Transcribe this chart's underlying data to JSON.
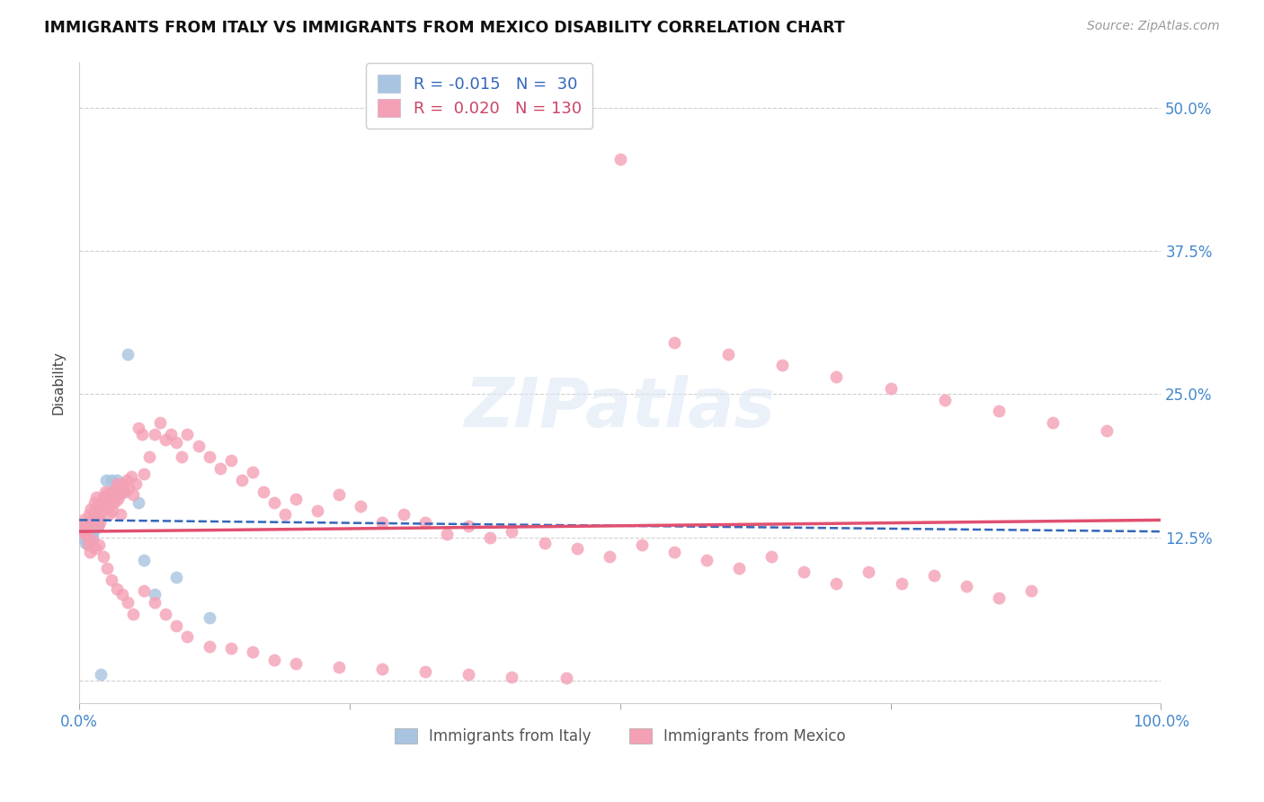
{
  "title": "IMMIGRANTS FROM ITALY VS IMMIGRANTS FROM MEXICO DISABILITY CORRELATION CHART",
  "source": "Source: ZipAtlas.com",
  "ylabel": "Disability",
  "yticks": [
    0.0,
    0.125,
    0.25,
    0.375,
    0.5
  ],
  "ytick_labels": [
    "",
    "12.5%",
    "25.0%",
    "37.5%",
    "50.0%"
  ],
  "xlim": [
    0.0,
    1.0
  ],
  "ylim": [
    -0.02,
    0.54
  ],
  "italy_color": "#a8c4e0",
  "mexico_color": "#f4a0b5",
  "italy_line_color": "#3366bb",
  "mexico_line_color": "#e05070",
  "italy_R": -0.015,
  "italy_N": 30,
  "mexico_R": 0.02,
  "mexico_N": 130,
  "legend_label_italy": "Immigrants from Italy",
  "legend_label_mexico": "Immigrants from Mexico",
  "watermark": "ZIPatlas",
  "italy_x": [
    0.003,
    0.004,
    0.005,
    0.006,
    0.007,
    0.008,
    0.009,
    0.01,
    0.011,
    0.012,
    0.013,
    0.014,
    0.015,
    0.016,
    0.017,
    0.018,
    0.02,
    0.022,
    0.025,
    0.028,
    0.03,
    0.035,
    0.04,
    0.045,
    0.055,
    0.06,
    0.07,
    0.09,
    0.12,
    0.02
  ],
  "italy_y": [
    0.125,
    0.13,
    0.135,
    0.12,
    0.128,
    0.122,
    0.132,
    0.128,
    0.138,
    0.125,
    0.13,
    0.14,
    0.145,
    0.15,
    0.135,
    0.14,
    0.155,
    0.16,
    0.175,
    0.165,
    0.175,
    0.175,
    0.165,
    0.285,
    0.155,
    0.105,
    0.075,
    0.09,
    0.055,
    0.005
  ],
  "mexico_x": [
    0.003,
    0.004,
    0.005,
    0.006,
    0.007,
    0.008,
    0.009,
    0.01,
    0.011,
    0.012,
    0.013,
    0.014,
    0.015,
    0.016,
    0.017,
    0.018,
    0.019,
    0.02,
    0.021,
    0.022,
    0.023,
    0.024,
    0.025,
    0.026,
    0.027,
    0.028,
    0.029,
    0.03,
    0.031,
    0.032,
    0.033,
    0.034,
    0.035,
    0.036,
    0.037,
    0.038,
    0.04,
    0.042,
    0.044,
    0.046,
    0.048,
    0.05,
    0.052,
    0.055,
    0.058,
    0.06,
    0.065,
    0.07,
    0.075,
    0.08,
    0.085,
    0.09,
    0.095,
    0.1,
    0.11,
    0.12,
    0.13,
    0.14,
    0.15,
    0.16,
    0.17,
    0.18,
    0.19,
    0.2,
    0.22,
    0.24,
    0.26,
    0.28,
    0.3,
    0.32,
    0.34,
    0.36,
    0.38,
    0.4,
    0.43,
    0.46,
    0.49,
    0.52,
    0.55,
    0.58,
    0.61,
    0.64,
    0.67,
    0.7,
    0.73,
    0.76,
    0.79,
    0.82,
    0.85,
    0.88,
    0.004,
    0.006,
    0.008,
    0.01,
    0.012,
    0.015,
    0.018,
    0.022,
    0.026,
    0.03,
    0.035,
    0.04,
    0.045,
    0.05,
    0.06,
    0.07,
    0.08,
    0.09,
    0.1,
    0.12,
    0.14,
    0.16,
    0.18,
    0.2,
    0.24,
    0.28,
    0.32,
    0.36,
    0.4,
    0.45,
    0.5,
    0.55,
    0.6,
    0.65,
    0.7,
    0.75,
    0.8,
    0.85,
    0.9,
    0.95
  ],
  "mexico_y": [
    0.135,
    0.14,
    0.132,
    0.128,
    0.138,
    0.125,
    0.145,
    0.135,
    0.15,
    0.14,
    0.145,
    0.155,
    0.15,
    0.16,
    0.135,
    0.145,
    0.138,
    0.155,
    0.148,
    0.158,
    0.152,
    0.165,
    0.155,
    0.162,
    0.145,
    0.152,
    0.158,
    0.165,
    0.148,
    0.155,
    0.16,
    0.168,
    0.172,
    0.158,
    0.162,
    0.145,
    0.172,
    0.165,
    0.175,
    0.168,
    0.178,
    0.162,
    0.172,
    0.22,
    0.215,
    0.18,
    0.195,
    0.215,
    0.225,
    0.21,
    0.215,
    0.208,
    0.195,
    0.215,
    0.205,
    0.195,
    0.185,
    0.192,
    0.175,
    0.182,
    0.165,
    0.155,
    0.145,
    0.158,
    0.148,
    0.162,
    0.152,
    0.138,
    0.145,
    0.138,
    0.128,
    0.135,
    0.125,
    0.13,
    0.12,
    0.115,
    0.108,
    0.118,
    0.112,
    0.105,
    0.098,
    0.108,
    0.095,
    0.085,
    0.095,
    0.085,
    0.092,
    0.082,
    0.072,
    0.078,
    0.13,
    0.128,
    0.118,
    0.112,
    0.122,
    0.115,
    0.118,
    0.108,
    0.098,
    0.088,
    0.08,
    0.075,
    0.068,
    0.058,
    0.078,
    0.068,
    0.058,
    0.048,
    0.038,
    0.03,
    0.028,
    0.025,
    0.018,
    0.015,
    0.012,
    0.01,
    0.008,
    0.005,
    0.003,
    0.002,
    0.455,
    0.295,
    0.285,
    0.275,
    0.265,
    0.255,
    0.245,
    0.235,
    0.225,
    0.218
  ]
}
